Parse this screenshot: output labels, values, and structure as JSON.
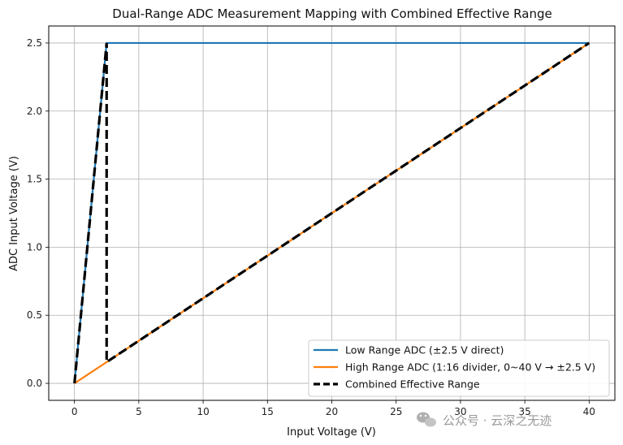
{
  "chart_data": {
    "type": "line",
    "title": "Dual-Range ADC Measurement Mapping with Combined Effective Range",
    "xlabel": "Input Voltage (V)",
    "ylabel": "ADC Input Voltage (V)",
    "xlim": [
      -2,
      42
    ],
    "ylim": [
      -0.125,
      2.625
    ],
    "xticks": [
      0,
      5,
      10,
      15,
      20,
      25,
      30,
      35,
      40
    ],
    "yticks": [
      0.0,
      0.5,
      1.0,
      1.5,
      2.0,
      2.5
    ],
    "xtick_labels": [
      "0",
      "5",
      "10",
      "15",
      "20",
      "25",
      "30",
      "35",
      "40"
    ],
    "ytick_labels": [
      "0.0",
      "0.5",
      "1.0",
      "1.5",
      "2.0",
      "2.5"
    ],
    "grid": true,
    "legend_position": "bottom-right",
    "series": [
      {
        "name": "Low Range ADC (±2.5 V direct)",
        "color": "#1f77b4",
        "style": "solid",
        "x": [
          0,
          2.5,
          40
        ],
        "y": [
          0,
          2.5,
          2.5
        ]
      },
      {
        "name": "High Range ADC (1:16 divider, 0~40 V → ±2.5 V)",
        "color": "#ff7f0e",
        "style": "solid",
        "x": [
          0,
          40
        ],
        "y": [
          0,
          2.5
        ]
      },
      {
        "name": "Combined Effective Range",
        "color": "#000000",
        "style": "dashed",
        "x": [
          0,
          2.5,
          2.5,
          40
        ],
        "y": [
          0,
          2.5,
          0.15625,
          2.5
        ]
      }
    ]
  },
  "watermark": {
    "text": "公众号 · 云深之无迹",
    "icon": "wechat-icon"
  }
}
